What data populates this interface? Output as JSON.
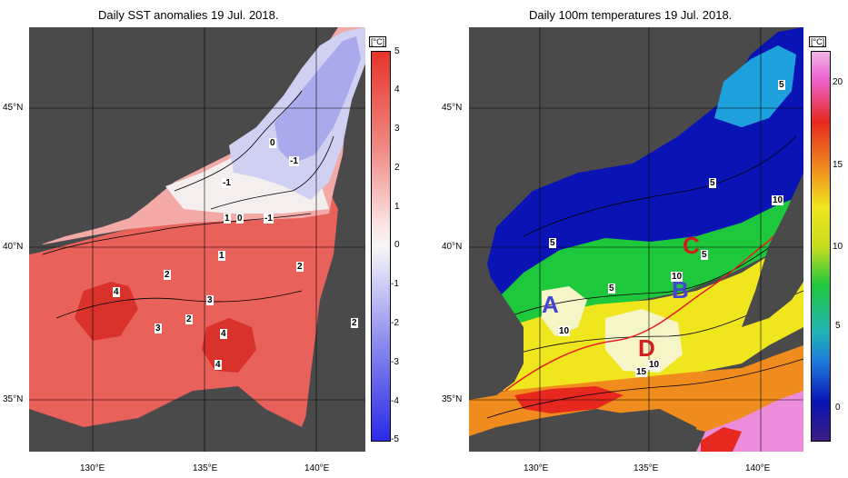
{
  "left": {
    "title": "Daily SST anomalies 19 Jul. 2018.",
    "unit": "[°C]",
    "colorbar_ticks": [
      "5",
      "4",
      "3",
      "2",
      "1",
      "0",
      "-1",
      "-2",
      "-3",
      "-4",
      "-5"
    ],
    "contour_labels": [
      "0",
      "-1",
      "-1",
      "1",
      "0",
      "-1",
      "1",
      "2",
      "2",
      "4",
      "3",
      "2",
      "3",
      "4",
      "4"
    ]
  },
  "right": {
    "title": "Daily 100m temperatures 19 Jul. 2018.",
    "unit": "[°C]",
    "colorbar_ticks": [
      "20",
      "15",
      "10",
      "5",
      "0"
    ],
    "contour_labels": [
      "5",
      "5",
      "5",
      "5",
      "5",
      "10",
      "10",
      "10",
      "10",
      "15"
    ],
    "point_labels": [
      "A",
      "B",
      "C",
      "D"
    ]
  },
  "axes": {
    "lat_labels": [
      "45°N",
      "40°N",
      "35°N"
    ],
    "lon_labels": [
      "130°E",
      "135°E",
      "140°E"
    ]
  },
  "colors": {
    "land": "#4a4a4a",
    "anomaly_warm": "#e8332a",
    "anomaly_cold": "#2a2ae8",
    "temp_cold": "#0a14b4",
    "temp_warm": "#ff1e1e",
    "point_label_blue": "#4646d2",
    "point_label_red": "#d21e1e"
  }
}
